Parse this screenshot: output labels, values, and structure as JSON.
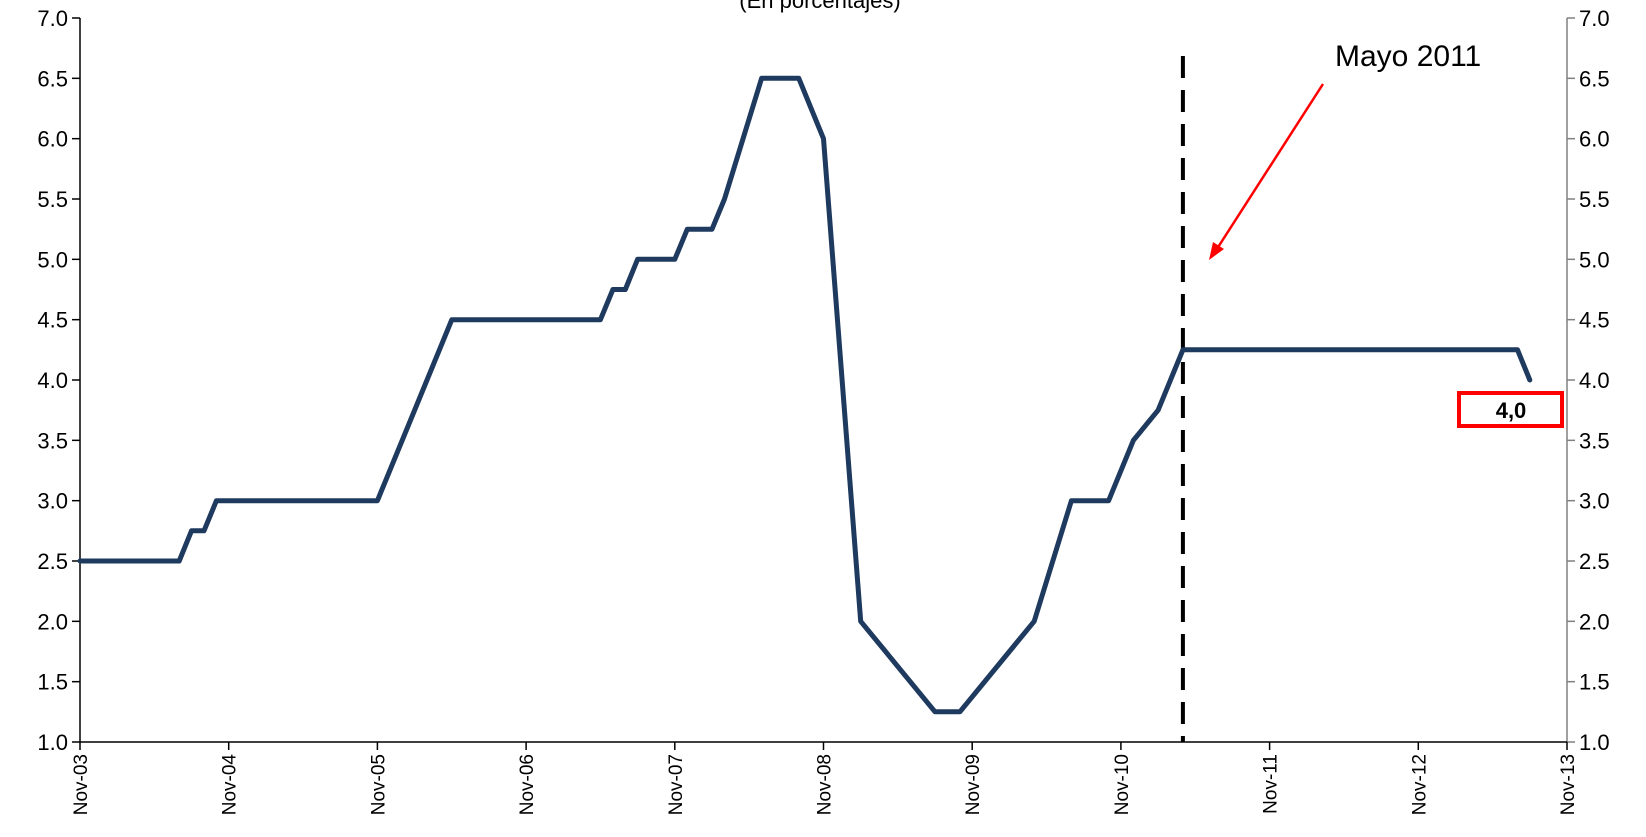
{
  "chart_data": {
    "type": "line",
    "title": "(En porcentajes)",
    "xlabel": "",
    "ylabel": "",
    "ylim": [
      1.0,
      7.0
    ],
    "y_ticks": [
      "1.0",
      "1.5",
      "2.0",
      "2.5",
      "3.0",
      "3.5",
      "4.0",
      "4.5",
      "5.0",
      "5.5",
      "6.0",
      "6.5",
      "7.0"
    ],
    "x_ticks": [
      "Nov-03",
      "Nov-04",
      "Nov-05",
      "Nov-06",
      "Nov-07",
      "Nov-08",
      "Nov-09",
      "Nov-10",
      "Nov-11",
      "Nov-12",
      "Nov-13"
    ],
    "x_range_years": [
      2003.833,
      2013.833
    ],
    "grid": false,
    "legend": "none",
    "line_color": "#1f3a5f",
    "series": [
      {
        "x": [
          2003.833,
          2004.5,
          2004.583,
          2004.667,
          2004.75,
          2005.833,
          2006.333,
          2006.5,
          2007.333,
          2007.417,
          2007.5,
          2007.583,
          2007.833,
          2007.917,
          2008.083,
          2008.167,
          2008.417,
          2008.667,
          2008.833,
          2009.083,
          2009.583,
          2009.75,
          2010.25,
          2010.5,
          2010.75,
          2010.917,
          2011.083,
          2011.25,
          2011.417,
          2013.5,
          2013.583
        ],
        "y": [
          2.5,
          2.5,
          2.75,
          2.75,
          3.0,
          3.0,
          4.5,
          4.5,
          4.5,
          4.75,
          4.75,
          5.0,
          5.0,
          5.25,
          5.25,
          5.5,
          6.5,
          6.5,
          6.0,
          2.0,
          1.25,
          1.25,
          2.0,
          3.0,
          3.0,
          3.5,
          3.75,
          4.25,
          4.25,
          4.25,
          4.0
        ]
      }
    ],
    "annotations": {
      "event_line_x": 2011.25,
      "event_label": "Mayo 2011",
      "event_color": "#ff0000",
      "last_value_label": "4,0",
      "last_value_y": 3.75,
      "last_value_x": 2013.5
    }
  }
}
